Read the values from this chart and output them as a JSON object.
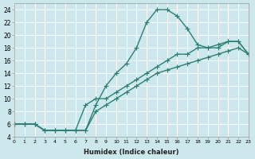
{
  "xlabel": "Humidex (Indice chaleur)",
  "ylabel": "",
  "bg_color": "#cce8ec",
  "grid_color": "#ffffff",
  "line_color": "#2e7d72",
  "line1_x": [
    0,
    1,
    2,
    3,
    4,
    5,
    6,
    7,
    8,
    9,
    10,
    11,
    12,
    13,
    14,
    15,
    16,
    17,
    18,
    19,
    20,
    21,
    22,
    23
  ],
  "line1_y": [
    6,
    6,
    6,
    5,
    5,
    5,
    5,
    5,
    9,
    12,
    14,
    15.5,
    18,
    22,
    24,
    24,
    23,
    21,
    18.5,
    18,
    18,
    19,
    19,
    17
  ],
  "line2_x": [
    0,
    1,
    2,
    3,
    4,
    5,
    6,
    7,
    8,
    9,
    10,
    11,
    12,
    13,
    14,
    15,
    16,
    17,
    18,
    19,
    20,
    21,
    22,
    23
  ],
  "line2_y": [
    6,
    6,
    6,
    5,
    5,
    5,
    5,
    9,
    10,
    10,
    11,
    12,
    13,
    14,
    15,
    16,
    17,
    17,
    18,
    18,
    18.5,
    19,
    19,
    17
  ],
  "line3_x": [
    0,
    1,
    2,
    3,
    4,
    5,
    6,
    7,
    8,
    9,
    10,
    11,
    12,
    13,
    14,
    15,
    16,
    17,
    18,
    19,
    20,
    21,
    22,
    23
  ],
  "line3_y": [
    6,
    6,
    6,
    5,
    5,
    5,
    5,
    5,
    8,
    9,
    10,
    11,
    12,
    13,
    14,
    14.5,
    15,
    15.5,
    16,
    16.5,
    17,
    17.5,
    18,
    17
  ],
  "xlim": [
    0,
    23
  ],
  "ylim": [
    4,
    25
  ],
  "yticks": [
    4,
    6,
    8,
    10,
    12,
    14,
    16,
    18,
    20,
    22,
    24
  ],
  "xticks": [
    0,
    1,
    2,
    3,
    4,
    5,
    6,
    7,
    8,
    9,
    10,
    11,
    12,
    13,
    14,
    15,
    16,
    17,
    18,
    19,
    20,
    21,
    22,
    23
  ],
  "marker": "+",
  "marker_size": 4,
  "line_width": 1.0
}
